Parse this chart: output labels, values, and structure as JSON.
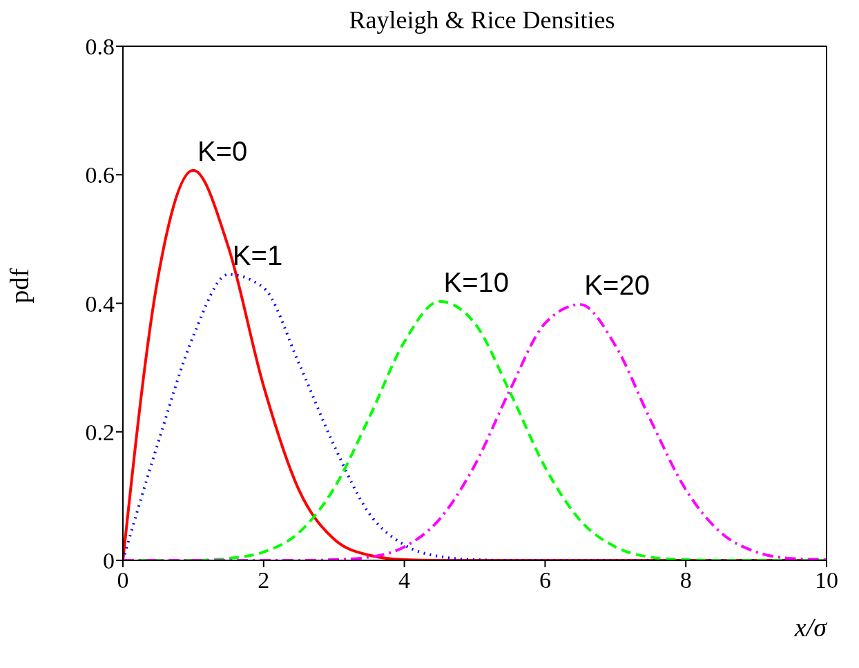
{
  "chart_data": {
    "type": "line",
    "title": "Rayleigh & Rice Densities",
    "xlabel": "x/σ",
    "ylabel": "pdf",
    "x": [
      0,
      0.5,
      1,
      1.5,
      2,
      2.5,
      3,
      3.5,
      4,
      4.5,
      5,
      5.5,
      6,
      6.5,
      7,
      7.5,
      8,
      8.5,
      9,
      9.5,
      10
    ],
    "series": [
      {
        "name": "K=0",
        "color": "#ff0000",
        "line_style": "solid",
        "values": [
          0,
          0.441,
          0.607,
          0.487,
          0.271,
          0.11,
          0.033,
          0.008,
          0.001,
          0,
          0,
          0,
          0,
          0,
          0,
          0,
          0,
          0,
          0,
          0,
          0
        ]
      },
      {
        "name": "K=1",
        "color": "#0000ff",
        "line_style": "dotted",
        "values": [
          0,
          0.183,
          0.349,
          0.445,
          0.424,
          0.307,
          0.179,
          0.073,
          0.024,
          0.006,
          0.001,
          0,
          0,
          0,
          0,
          0,
          0,
          0,
          0,
          0,
          0
        ]
      },
      {
        "name": "K=10",
        "color": "#00ff00",
        "line_style": "dashed",
        "values": [
          0,
          0,
          0,
          0.003,
          0.013,
          0.043,
          0.112,
          0.222,
          0.34,
          0.403,
          0.369,
          0.262,
          0.145,
          0.062,
          0.021,
          0.005,
          0.001,
          0,
          0,
          0,
          0
        ]
      },
      {
        "name": "K=20",
        "color": "#ff00ff",
        "line_style": "dashdot",
        "values": [
          0,
          0,
          0,
          0,
          0,
          0,
          0.001,
          0.005,
          0.021,
          0.064,
          0.148,
          0.265,
          0.369,
          0.398,
          0.334,
          0.218,
          0.11,
          0.043,
          0.013,
          0.003,
          0.001
        ]
      }
    ],
    "xlim": [
      0,
      10
    ],
    "xticks": [
      0,
      2,
      4,
      6,
      8,
      10
    ],
    "ylim": [
      0,
      0.8
    ],
    "yticks": [
      0,
      0.2,
      0.4,
      0.6,
      0.8
    ],
    "grid": false,
    "legend": false,
    "marker": "none"
  }
}
